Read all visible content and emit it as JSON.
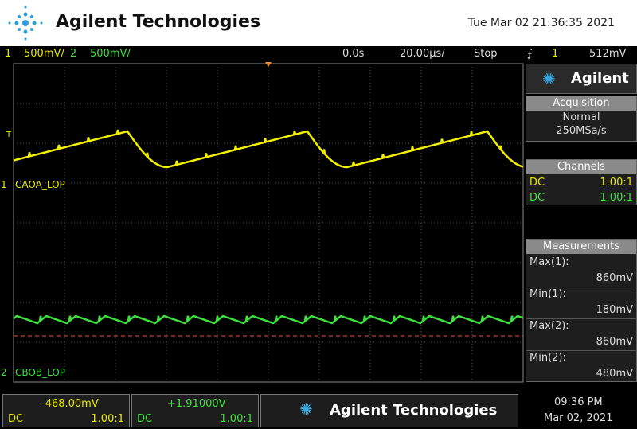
{
  "header": {
    "brand": "Agilent Technologies",
    "datetime": "Tue Mar 02 21:36:35 2021"
  },
  "status_bar": {
    "ch1_num": "1",
    "ch1_scale": "500mV/",
    "ch2_num": "2",
    "ch2_scale": "500mV/",
    "time_offset": "0.0s",
    "time_scale": "20.00µs/",
    "run_state": "Stop",
    "trigger_source": "1",
    "trigger_level": "512mV"
  },
  "screen": {
    "trigger_marker": "T",
    "ch1_num": "1",
    "ch1_label": "CAOA_LOP",
    "ch2_num": "2",
    "ch2_label": "CBOB_LOP"
  },
  "side_panel": {
    "brand": "Agilent",
    "acquisition": {
      "title": "Acquisition",
      "mode": "Normal",
      "rate": "250MSa/s"
    },
    "channels": {
      "title": "Channels",
      "rows": [
        [
          "DC",
          "1.00:1"
        ],
        [
          "DC",
          "1.00:1"
        ]
      ]
    },
    "measurements": {
      "title": "Measurements",
      "rows": [
        [
          "Max(1):",
          "860mV"
        ],
        [
          "Min(1):",
          "180mV"
        ],
        [
          "Max(2):",
          "860mV"
        ],
        [
          "Min(2):",
          "480mV"
        ]
      ]
    }
  },
  "footer": {
    "ch1": {
      "offset": "-468.00mV",
      "coupling": "DC",
      "probe": "1.00:1"
    },
    "ch2": {
      "offset": "+1.91000V",
      "coupling": "DC",
      "probe": "1.00:1"
    },
    "brand": "Agilent Technologies",
    "time": "09:36 PM",
    "date": "Mar 02, 2021"
  }
}
